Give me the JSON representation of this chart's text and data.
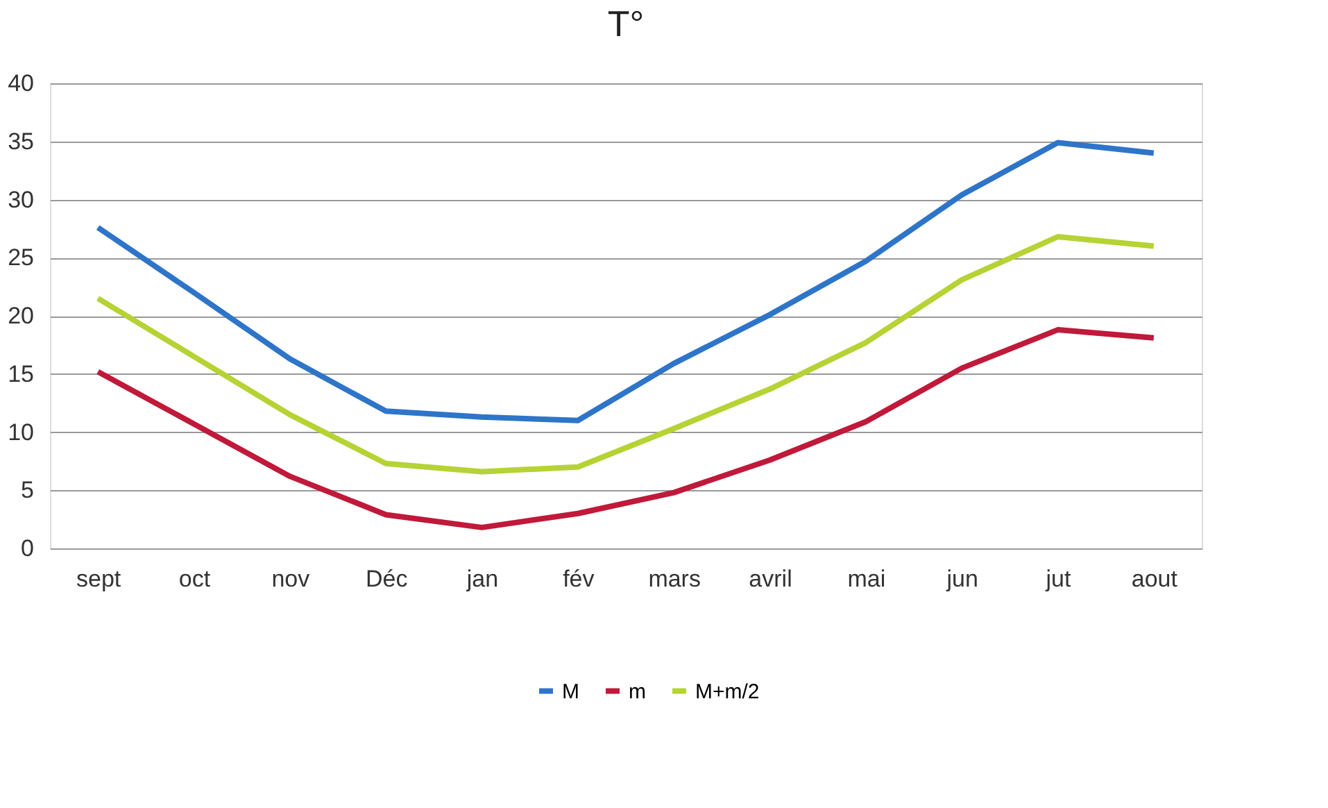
{
  "chart_data": {
    "type": "line",
    "title": "T°",
    "categories": [
      "sept",
      "oct",
      "nov",
      "Déc",
      "jan",
      "fév",
      "mars",
      "avril",
      "mai",
      "jun",
      "jut",
      "aout"
    ],
    "series": [
      {
        "name": "M",
        "color": "#2e75c9",
        "values": [
          27.6,
          22.0,
          16.3,
          11.8,
          11.3,
          11.0,
          15.9,
          20.1,
          24.7,
          30.4,
          34.9,
          34.0
        ]
      },
      {
        "name": "m",
        "color": "#c0193a",
        "values": [
          15.2,
          10.7,
          6.2,
          2.9,
          1.8,
          3.0,
          4.8,
          7.6,
          10.9,
          15.5,
          18.8,
          18.1
        ]
      },
      {
        "name": "M+m/2",
        "color": "#b5d334",
        "values": [
          21.5,
          16.5,
          11.5,
          7.3,
          6.6,
          7.0,
          10.3,
          13.7,
          17.7,
          23.1,
          26.8,
          26.0
        ]
      }
    ],
    "ylim": [
      0,
      40
    ],
    "yticks": [
      0,
      5,
      10,
      15,
      20,
      25,
      30,
      35,
      40
    ],
    "grid": "y",
    "legend": "bottom",
    "marker": "none",
    "line_style": "solid"
  }
}
